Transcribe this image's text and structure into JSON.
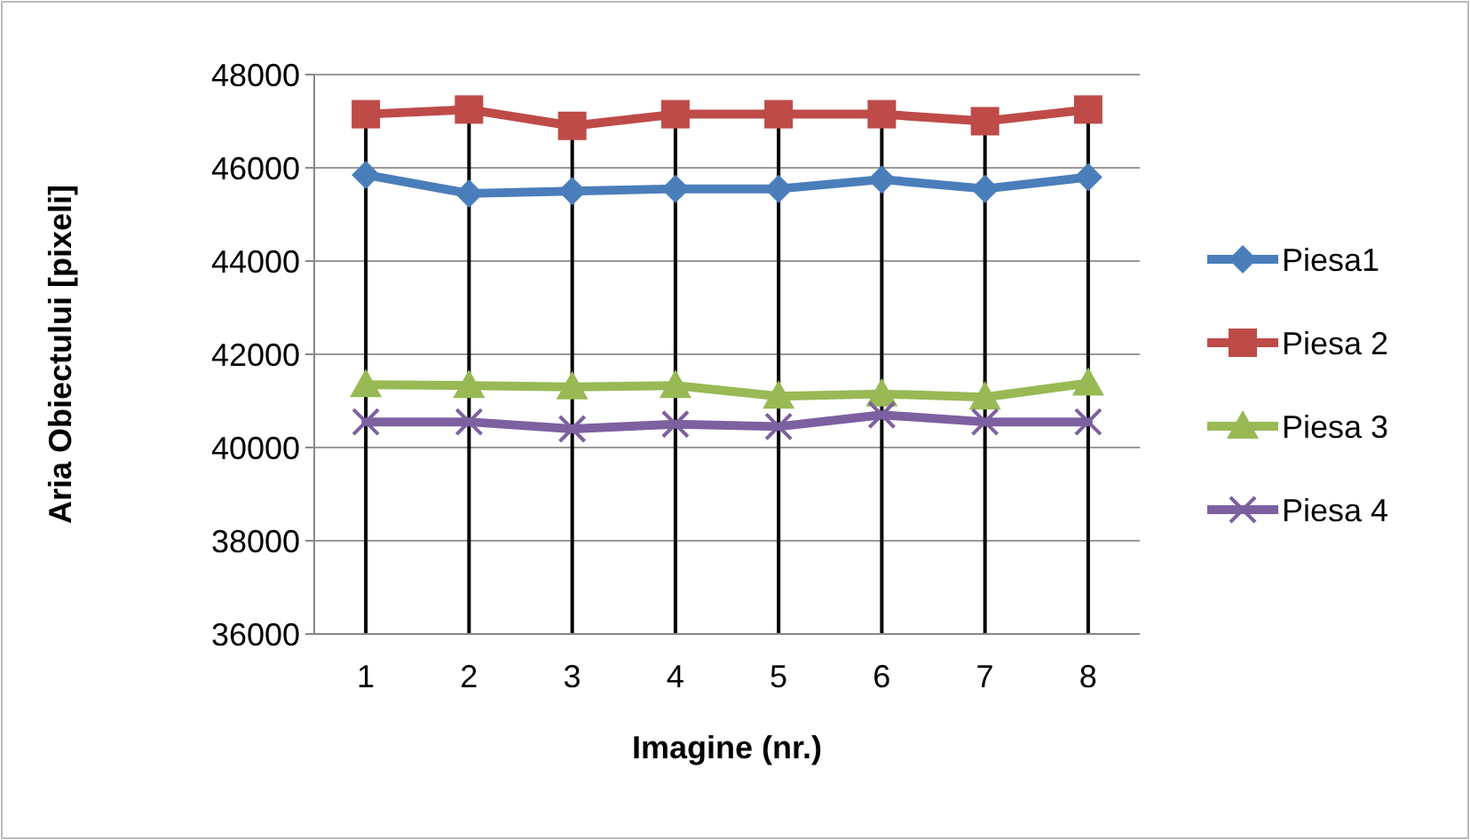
{
  "chart_data": {
    "type": "line",
    "xlabel": "Imagine (nr.)",
    "ylabel": "Aria Obiectului [pixeli]",
    "categories": [
      "1",
      "2",
      "3",
      "4",
      "5",
      "6",
      "7",
      "8"
    ],
    "series": [
      {
        "name": "Piesa1",
        "color": "#4a7ebb",
        "marker": "diamond",
        "values": [
          45850,
          45450,
          45500,
          45550,
          45550,
          45750,
          45550,
          45800
        ]
      },
      {
        "name": "Piesa 2",
        "color": "#be4b48",
        "marker": "square",
        "values": [
          47150,
          47250,
          46900,
          47150,
          47150,
          47150,
          47000,
          47250
        ]
      },
      {
        "name": "Piesa 3",
        "color": "#98b954",
        "marker": "triangle",
        "values": [
          41350,
          41330,
          41300,
          41330,
          41100,
          41150,
          41080,
          41380
        ]
      },
      {
        "name": "Piesa 4",
        "color": "#7d60a0",
        "marker": "cross",
        "values": [
          40550,
          40550,
          40400,
          40500,
          40450,
          40700,
          40550,
          40550
        ]
      }
    ],
    "ylim": [
      36000,
      48000
    ],
    "yticks": [
      36000,
      38000,
      40000,
      42000,
      44000,
      46000,
      48000
    ],
    "grid": true,
    "legend": "right",
    "line_style": "solid"
  }
}
